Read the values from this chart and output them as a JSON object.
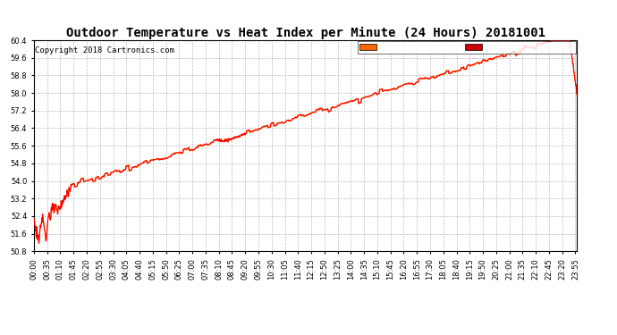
{
  "title": "Outdoor Temperature vs Heat Index per Minute (24 Hours) 20181001",
  "copyright": "Copyright 2018 Cartronics.com",
  "y_min": 50.8,
  "y_max": 60.4,
  "y_tick_interval": 0.8,
  "x_label_interval_minutes": 35,
  "total_minutes": 1440,
  "background_color": "#ffffff",
  "grid_color": "#bbbbbb",
  "temp_color": "#ff0000",
  "heat_index_color": "#ff6600",
  "legend_heat_bg": "#ff6600",
  "legend_temp_bg": "#cc0000",
  "legend_text_color": "#ffffff",
  "title_fontsize": 10,
  "copyright_fontsize": 6.5,
  "tick_fontsize": 6,
  "legend_fontsize": 7
}
